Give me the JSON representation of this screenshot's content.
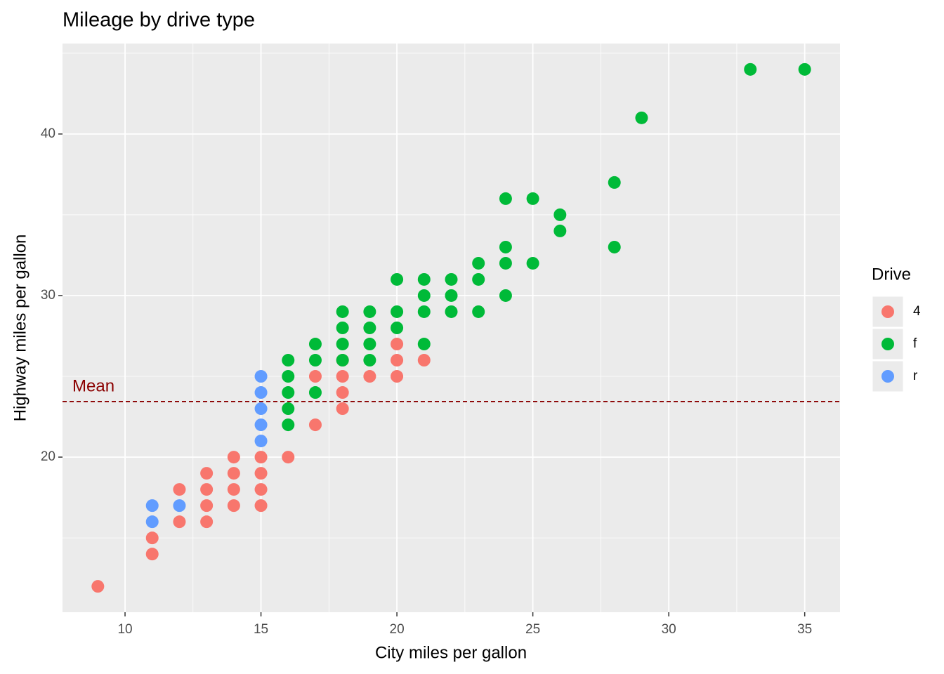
{
  "chart_data": {
    "type": "scatter",
    "title": "Mileage by drive type",
    "x_label": "City miles per gallon",
    "y_label": "Highway miles per gallon",
    "xlim": [
      7.7,
      36.3
    ],
    "ylim": [
      10.4,
      45.6
    ],
    "xticks": [
      10,
      15,
      20,
      25,
      30,
      35
    ],
    "yticks": [
      20,
      30,
      40
    ],
    "x_minor_ticks": [
      12.5,
      17.5,
      22.5,
      27.5,
      32.5
    ],
    "y_minor_ticks": [
      15,
      25,
      35,
      45
    ],
    "grid": true,
    "legend_title": "Drive",
    "legend_position": "right",
    "hline": {
      "value": 23.44,
      "label": "Mean",
      "color": "#8b0000"
    },
    "series": [
      {
        "name": "4",
        "color": "#F8766D",
        "x": [
          9,
          11,
          11,
          12,
          12,
          13,
          13,
          13,
          13,
          14,
          14,
          14,
          14,
          15,
          15,
          15,
          15,
          16,
          17,
          17,
          18,
          18,
          18,
          18,
          19,
          20,
          20,
          20,
          21
        ],
        "values": [
          12,
          14,
          15,
          16,
          18,
          16,
          17,
          18,
          19,
          17,
          18,
          19,
          20,
          17,
          18,
          19,
          20,
          20,
          22,
          25,
          23,
          24,
          25,
          26,
          25,
          25,
          26,
          27,
          26
        ]
      },
      {
        "name": "f",
        "color": "#00BA38",
        "x": [
          16,
          16,
          16,
          16,
          16,
          17,
          17,
          17,
          18,
          18,
          18,
          18,
          19,
          19,
          19,
          19,
          20,
          20,
          20,
          21,
          21,
          21,
          21,
          22,
          22,
          22,
          23,
          23,
          23,
          24,
          24,
          24,
          24,
          25,
          25,
          26,
          26,
          28,
          28,
          29,
          33,
          35
        ],
        "values": [
          22,
          23,
          24,
          25,
          26,
          24,
          26,
          27,
          26,
          27,
          28,
          29,
          26,
          27,
          28,
          29,
          28,
          29,
          31,
          27,
          29,
          30,
          31,
          29,
          30,
          31,
          29,
          31,
          32,
          30,
          32,
          33,
          36,
          32,
          36,
          34,
          35,
          33,
          37,
          41,
          44,
          44
        ]
      },
      {
        "name": "r",
        "color": "#619CFF",
        "x": [
          11,
          11,
          12,
          15,
          15,
          15,
          15,
          15
        ],
        "values": [
          16,
          17,
          17,
          21,
          22,
          23,
          24,
          25
        ]
      }
    ]
  }
}
